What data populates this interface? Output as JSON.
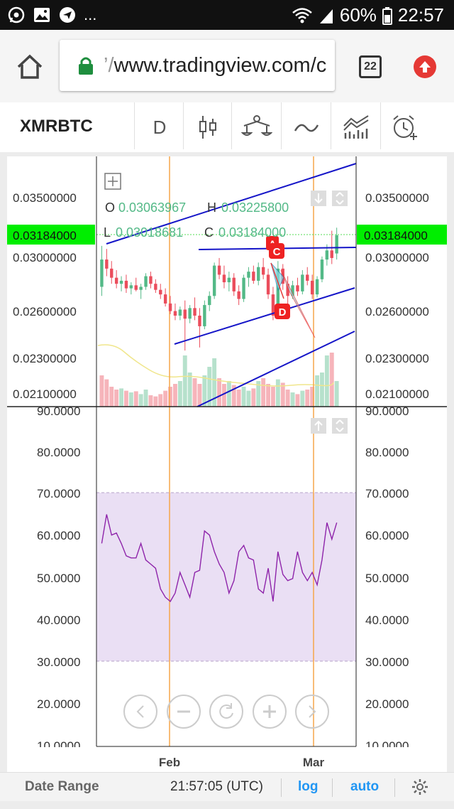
{
  "statusbar": {
    "battery": "60%",
    "time": "22:57",
    "ellipsis": "..."
  },
  "browser": {
    "url_prefix": "’/",
    "url": "www.tradingview.com/c",
    "tab_count": "22"
  },
  "toolbar": {
    "symbol": "XMRBTC",
    "interval": "D"
  },
  "legend": {
    "o_label": "O",
    "o_value": "0.03063967",
    "h_label": "H",
    "h_value": "0.03225800",
    "l_label": "L",
    "l_value": "0.03018681",
    "c_label": "C",
    "c_value": "0.03184000"
  },
  "price_axis": {
    "ticks": [
      "0.03500000",
      "0.03000000",
      "0.02600000",
      "0.02300000",
      "0.02100000"
    ],
    "last_price": "0.03184000"
  },
  "rsi_axis": {
    "ticks": [
      "90.0000",
      "80.0000",
      "70.0000",
      "60.0000",
      "50.0000",
      "40.0000",
      "30.0000",
      "20.0000",
      "10.0000"
    ]
  },
  "time_axis": {
    "ticks": [
      "Feb",
      "Mar"
    ]
  },
  "pattern_labels": [
    "A",
    "C",
    "D"
  ],
  "bottom": {
    "date_range": "Date Range",
    "clock": "21:57:05 (UTC)",
    "log": "log",
    "auto": "auto"
  },
  "colors": {
    "up": "#53b987",
    "down": "#eb4d5c",
    "trendline": "#1515c8",
    "rsi_line": "#8e24aa",
    "rsi_band": "#e9dcf3",
    "price_tag": "#00ee00",
    "accent": "#2196f3"
  },
  "chart_data": {
    "type": "candlestick",
    "candles": [
      {
        "o": 0.0284,
        "h": 0.0311,
        "l": 0.0278,
        "c": 0.0302
      },
      {
        "o": 0.0302,
        "h": 0.0309,
        "l": 0.0291,
        "c": 0.0296
      },
      {
        "o": 0.0296,
        "h": 0.0301,
        "l": 0.0286,
        "c": 0.029
      },
      {
        "o": 0.029,
        "h": 0.0295,
        "l": 0.0283,
        "c": 0.0286
      },
      {
        "o": 0.0286,
        "h": 0.0291,
        "l": 0.0281,
        "c": 0.0288
      },
      {
        "o": 0.0288,
        "h": 0.0292,
        "l": 0.028,
        "c": 0.0283
      },
      {
        "o": 0.0283,
        "h": 0.0287,
        "l": 0.0279,
        "c": 0.0285
      },
      {
        "o": 0.0285,
        "h": 0.029,
        "l": 0.0281,
        "c": 0.0282
      },
      {
        "o": 0.0282,
        "h": 0.0286,
        "l": 0.0276,
        "c": 0.0284
      },
      {
        "o": 0.0284,
        "h": 0.0293,
        "l": 0.0282,
        "c": 0.0291
      },
      {
        "o": 0.0291,
        "h": 0.0294,
        "l": 0.0283,
        "c": 0.0286
      },
      {
        "o": 0.0286,
        "h": 0.0289,
        "l": 0.028,
        "c": 0.0282
      },
      {
        "o": 0.0282,
        "h": 0.0286,
        "l": 0.0276,
        "c": 0.0279
      },
      {
        "o": 0.0279,
        "h": 0.0283,
        "l": 0.0271,
        "c": 0.0273
      },
      {
        "o": 0.0273,
        "h": 0.0278,
        "l": 0.0266,
        "c": 0.0268
      },
      {
        "o": 0.0268,
        "h": 0.0273,
        "l": 0.0262,
        "c": 0.0265
      },
      {
        "o": 0.0265,
        "h": 0.0271,
        "l": 0.0262,
        "c": 0.0269
      },
      {
        "o": 0.0269,
        "h": 0.0275,
        "l": 0.0242,
        "c": 0.0263
      },
      {
        "o": 0.0263,
        "h": 0.0272,
        "l": 0.026,
        "c": 0.027
      },
      {
        "o": 0.027,
        "h": 0.0277,
        "l": 0.0262,
        "c": 0.0265
      },
      {
        "o": 0.0265,
        "h": 0.027,
        "l": 0.0244,
        "c": 0.0258
      },
      {
        "o": 0.0258,
        "h": 0.0275,
        "l": 0.0256,
        "c": 0.0272
      },
      {
        "o": 0.0272,
        "h": 0.0281,
        "l": 0.0268,
        "c": 0.0278
      },
      {
        "o": 0.0278,
        "h": 0.03,
        "l": 0.0276,
        "c": 0.0298
      },
      {
        "o": 0.0298,
        "h": 0.0303,
        "l": 0.0289,
        "c": 0.0292
      },
      {
        "o": 0.0292,
        "h": 0.0298,
        "l": 0.0283,
        "c": 0.0287
      },
      {
        "o": 0.0287,
        "h": 0.0294,
        "l": 0.0281,
        "c": 0.029
      },
      {
        "o": 0.029,
        "h": 0.0293,
        "l": 0.0278,
        "c": 0.0281
      },
      {
        "o": 0.0281,
        "h": 0.0285,
        "l": 0.0272,
        "c": 0.0276
      },
      {
        "o": 0.0276,
        "h": 0.0292,
        "l": 0.0274,
        "c": 0.029
      },
      {
        "o": 0.029,
        "h": 0.0297,
        "l": 0.0284,
        "c": 0.0294
      },
      {
        "o": 0.0294,
        "h": 0.0298,
        "l": 0.0286,
        "c": 0.0288
      },
      {
        "o": 0.0288,
        "h": 0.03,
        "l": 0.0285,
        "c": 0.0297
      },
      {
        "o": 0.0297,
        "h": 0.0303,
        "l": 0.0289,
        "c": 0.0292
      },
      {
        "o": 0.0292,
        "h": 0.0296,
        "l": 0.0276,
        "c": 0.0279
      },
      {
        "o": 0.0279,
        "h": 0.0284,
        "l": 0.0262,
        "c": 0.0265
      },
      {
        "o": 0.0265,
        "h": 0.0301,
        "l": 0.0263,
        "c": 0.0296
      },
      {
        "o": 0.0296,
        "h": 0.0299,
        "l": 0.0282,
        "c": 0.0286
      },
      {
        "o": 0.0286,
        "h": 0.0291,
        "l": 0.0272,
        "c": 0.0278
      },
      {
        "o": 0.0278,
        "h": 0.0288,
        "l": 0.0276,
        "c": 0.0285
      },
      {
        "o": 0.0285,
        "h": 0.029,
        "l": 0.0278,
        "c": 0.0281
      },
      {
        "o": 0.0281,
        "h": 0.0295,
        "l": 0.0279,
        "c": 0.0292
      },
      {
        "o": 0.0292,
        "h": 0.0297,
        "l": 0.0285,
        "c": 0.0288
      },
      {
        "o": 0.0288,
        "h": 0.0292,
        "l": 0.0276,
        "c": 0.0279
      },
      {
        "o": 0.0279,
        "h": 0.0291,
        "l": 0.0277,
        "c": 0.0289
      },
      {
        "o": 0.0289,
        "h": 0.0304,
        "l": 0.0287,
        "c": 0.0302
      },
      {
        "o": 0.0302,
        "h": 0.0312,
        "l": 0.0298,
        "c": 0.0308
      },
      {
        "o": 0.0308,
        "h": 0.0321,
        "l": 0.0299,
        "c": 0.0303
      },
      {
        "o": 0.0306,
        "h": 0.0323,
        "l": 0.0302,
        "c": 0.0318
      }
    ],
    "volume": [
      0.55,
      0.48,
      0.35,
      0.3,
      0.32,
      0.28,
      0.25,
      0.27,
      0.22,
      0.3,
      0.2,
      0.18,
      0.22,
      0.28,
      0.35,
      0.4,
      0.45,
      0.9,
      0.6,
      0.5,
      0.4,
      0.55,
      0.7,
      0.85,
      0.5,
      0.4,
      0.45,
      0.38,
      0.3,
      0.35,
      0.28,
      0.32,
      0.45,
      0.5,
      0.4,
      0.35,
      0.48,
      0.42,
      0.3,
      0.25,
      0.22,
      0.28,
      0.3,
      0.35,
      0.55,
      0.6,
      0.9,
      0.95,
      0.45
    ],
    "volume_direction": [
      "d",
      "d",
      "d",
      "d",
      "u",
      "d",
      "u",
      "d",
      "u",
      "u",
      "d",
      "d",
      "d",
      "d",
      "d",
      "d",
      "u",
      "u",
      "u",
      "d",
      "d",
      "u",
      "u",
      "u",
      "d",
      "d",
      "u",
      "d",
      "d",
      "u",
      "u",
      "d",
      "u",
      "d",
      "d",
      "d",
      "u",
      "d",
      "d",
      "u",
      "d",
      "u",
      "d",
      "d",
      "u",
      "u",
      "u",
      "d",
      "u"
    ],
    "rsi": [
      57,
      64,
      59,
      59.5,
      57,
      54,
      53.5,
      53.5,
      57,
      53,
      52,
      51,
      46,
      44,
      43,
      45,
      50,
      47,
      44,
      50,
      50.5,
      60,
      59,
      55,
      52,
      50,
      45,
      48,
      55,
      56.5,
      53.5,
      53,
      46,
      45,
      51,
      43,
      55,
      49.5,
      48,
      48.5,
      55,
      50,
      48,
      50,
      47,
      53,
      62,
      58,
      62
    ],
    "rsi_upper_band": 70,
    "rsi_lower_band": 30,
    "price_ylim": [
      0.0205,
      0.037
    ],
    "rsi_ylim": [
      8,
      90
    ]
  }
}
